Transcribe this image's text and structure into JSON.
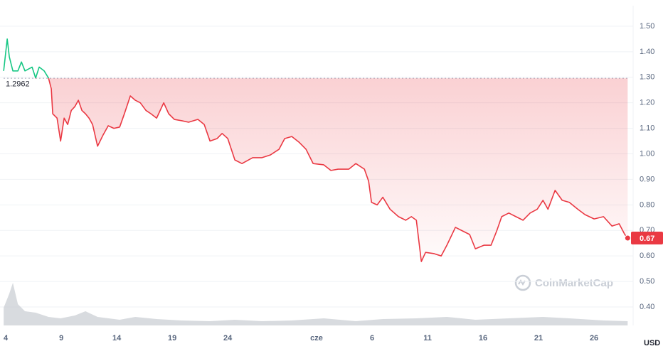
{
  "chart_data": {
    "type": "line",
    "x": [
      3.81,
      4.13,
      4.32,
      4.64,
      5.09,
      5.41,
      5.73,
      6.37,
      6.69,
      7.01,
      7.46,
      7.85,
      8.1,
      8.23,
      8.62,
      8.94,
      9.26,
      9.58,
      9.9,
      10.22,
      10.54,
      10.86,
      11.18,
      11.5,
      11.82,
      12.27,
      12.78,
      13.23,
      13.74,
      14.26,
      14.71,
      15.22,
      15.67,
      16.12,
      16.63,
      17.08,
      17.59,
      18.23,
      18.68,
      19.19,
      19.83,
      20.47,
      21.31,
      21.88,
      22.4,
      23.04,
      23.49,
      24.0,
      24.64,
      25.28,
      26.24,
      27.08,
      27.85,
      28.62,
      29.13,
      29.77,
      30.41,
      31.05,
      31.69,
      32.65,
      33.29,
      33.94,
      34.9,
      35.54,
      36.31,
      36.69,
      36.95,
      37.46,
      37.97,
      38.62,
      39.38,
      40.03,
      40.54,
      40.99,
      41.44,
      41.82,
      42.59,
      43.23,
      43.74,
      44.51,
      45.15,
      45.79,
      46.31,
      47.08,
      47.72,
      48.23,
      48.68,
      49.32,
      49.96,
      50.6,
      51.24,
      51.88,
      52.4,
      52.85,
      53.49,
      54.13,
      54.77,
      55.54,
      56.18,
      57.01,
      57.85,
      58.62,
      59.26,
      59.77,
      60.03
    ],
    "series": [
      {
        "name": "Price",
        "values": [
          1.325,
          1.45,
          1.38,
          1.325,
          1.325,
          1.36,
          1.325,
          1.34,
          1.297,
          1.34,
          1.325,
          1.297,
          1.255,
          1.157,
          1.14,
          1.05,
          1.14,
          1.115,
          1.17,
          1.185,
          1.21,
          1.17,
          1.157,
          1.14,
          1.115,
          1.03,
          1.075,
          1.11,
          1.1,
          1.105,
          1.16,
          1.227,
          1.21,
          1.2,
          1.17,
          1.157,
          1.14,
          1.2,
          1.157,
          1.135,
          1.13,
          1.124,
          1.135,
          1.115,
          1.05,
          1.06,
          1.08,
          1.06,
          0.976,
          0.962,
          0.985,
          0.985,
          0.996,
          1.018,
          1.06,
          1.068,
          1.046,
          1.018,
          0.962,
          0.957,
          0.935,
          0.94,
          0.94,
          0.962,
          0.94,
          0.893,
          0.81,
          0.8,
          0.83,
          0.783,
          0.754,
          0.74,
          0.754,
          0.74,
          0.578,
          0.614,
          0.609,
          0.6,
          0.642,
          0.712,
          0.698,
          0.684,
          0.628,
          0.642,
          0.642,
          0.698,
          0.754,
          0.768,
          0.754,
          0.74,
          0.768,
          0.783,
          0.818,
          0.783,
          0.857,
          0.818,
          0.81,
          0.783,
          0.762,
          0.745,
          0.754,
          0.717,
          0.726,
          0.684,
          0.67
        ]
      }
    ],
    "colors": {
      "up": "#16c784",
      "down": "#ea3943"
    },
    "baseline": 1.2962,
    "last_price": 0.67,
    "volume": {
      "x": [
        3.81,
        4.32,
        4.64,
        5.09,
        5.73,
        6.69,
        7.85,
        8.94,
        10.22,
        11.18,
        12.27,
        14.26,
        15.67,
        17.59,
        19.83,
        22.4,
        24.64,
        27.08,
        29.77,
        32.65,
        35.54,
        37.97,
        40.99,
        43.74,
        46.31,
        49.32,
        52.4,
        54.77,
        57.85,
        60.03
      ],
      "values": [
        25,
        45,
        60,
        30,
        20,
        18,
        12,
        10,
        14,
        20,
        12,
        8,
        12,
        9,
        7,
        6,
        8,
        6,
        7,
        10,
        6,
        9,
        10,
        12,
        8,
        10,
        12,
        10,
        7,
        6
      ],
      "color": "#c8ccd2"
    },
    "xlim": [
      3.8,
      60.2
    ],
    "xticks": [
      4,
      9,
      14,
      19,
      24,
      {
        "value": 32,
        "label": "cze"
      },
      {
        "value": 37,
        "label": "6"
      },
      {
        "value": 42,
        "label": "11"
      },
      {
        "value": 47,
        "label": "16"
      },
      {
        "value": 52,
        "label": "21"
      },
      {
        "value": 57,
        "label": "26"
      }
    ],
    "ylim": [
      0.336,
      1.575
    ],
    "yticks": [
      {
        "value": 0.4,
        "label": "0.40"
      },
      {
        "value": 0.5,
        "label": "0.50"
      },
      {
        "value": 0.6,
        "label": "0.60"
      },
      {
        "value": 0.7,
        "label": "0.70"
      },
      {
        "value": 0.8,
        "label": "0.80"
      },
      {
        "value": 0.9,
        "label": "0.90"
      },
      {
        "value": 1.0,
        "label": "1.00"
      },
      {
        "value": 1.1,
        "label": "1.10"
      },
      {
        "value": 1.2,
        "label": "1.20"
      },
      {
        "value": 1.3,
        "label": "1.30"
      },
      {
        "value": 1.4,
        "label": "1.40"
      },
      {
        "value": 1.5,
        "label": "1.50"
      }
    ],
    "grid": true,
    "currency": "USD",
    "watermark": "CoinMarketCap"
  }
}
